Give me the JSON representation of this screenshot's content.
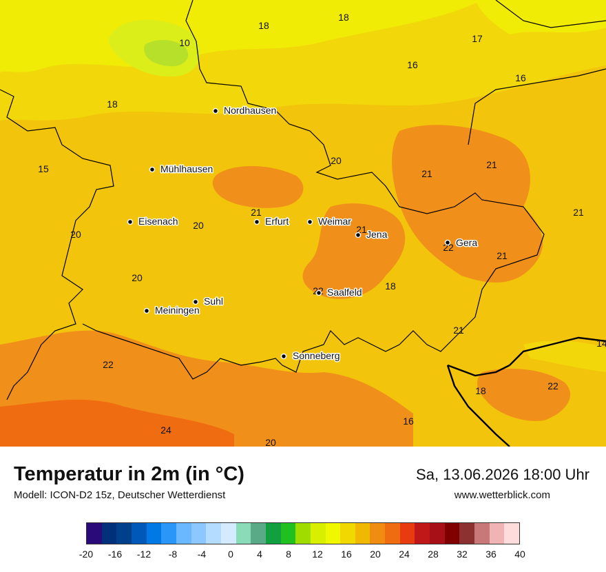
{
  "title": "Temperatur in 2m (in °C)",
  "datetime": "Sa, 13.06.2026 18:00 Uhr",
  "model": "Modell: ICON-D2 15z, Deutscher Wetterdienst",
  "website": "www.wetterblick.com",
  "cities": [
    "Nordhausen",
    "Mühlhausen",
    "Eisenach",
    "Erfurt",
    "Weimar",
    "Jena",
    "Gera",
    "Suhl",
    "Meiningen",
    "Saalfeld",
    "Sonneberg"
  ],
  "values": [
    "18",
    "18",
    "17",
    "10",
    "16",
    "16",
    "18",
    "15",
    "20",
    "21",
    "21",
    "21",
    "21",
    "20",
    "20",
    "21",
    "22",
    "21",
    "20",
    "22",
    "18",
    "21",
    "14",
    "22",
    "18",
    "22",
    "16",
    "24",
    "20"
  ],
  "legend": {
    "ticks": [
      "-20",
      "-16",
      "-12",
      "-8",
      "-4",
      "0",
      "4",
      "8",
      "12",
      "16",
      "20",
      "24",
      "28",
      "32",
      "36",
      "40"
    ],
    "colors": [
      "#2a0a78",
      "#00307a",
      "#003f8a",
      "#0058b8",
      "#0078e6",
      "#2a96f8",
      "#6ab8ff",
      "#8cc8ff",
      "#b4dcff",
      "#d4eaff",
      "#8adcb8",
      "#5aaa88",
      "#10a040",
      "#20c020",
      "#a0dc00",
      "#d8f000",
      "#f0f800",
      "#f0d800",
      "#f0b800",
      "#f08c10",
      "#f06c10",
      "#e83c10",
      "#c01818",
      "#a81018",
      "#800000",
      "#8c3030",
      "#c87878",
      "#f0b4b4",
      "#ffdcdc"
    ]
  }
}
